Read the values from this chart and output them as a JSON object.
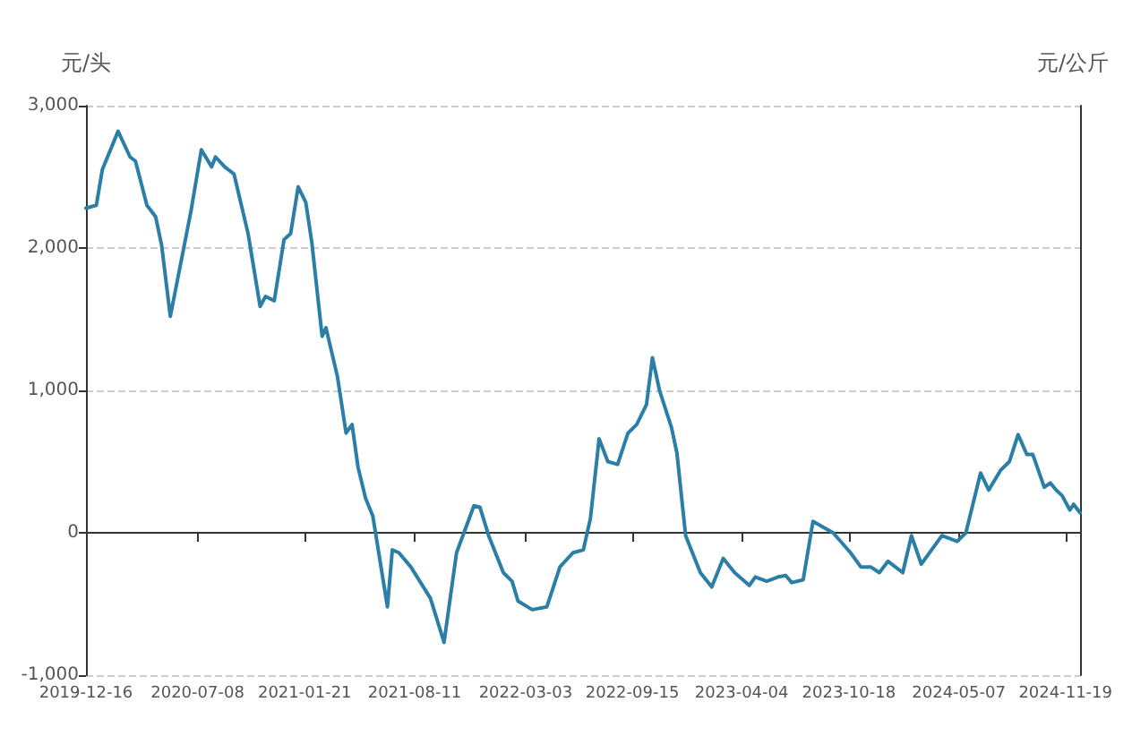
{
  "chart_data": {
    "type": "line",
    "ylabel": "元/头",
    "y2label": "元/公斤",
    "x": [
      "2019-12-16",
      "2020-01-04",
      "2020-01-15",
      "2020-02-13",
      "2020-03-06",
      "2020-03-16",
      "2020-04-06",
      "2020-04-22",
      "2020-05-03",
      "2020-05-19",
      "2020-06-26",
      "2020-07-15",
      "2020-08-03",
      "2020-08-10",
      "2020-08-27",
      "2020-09-13",
      "2020-10-09",
      "2020-10-31",
      "2020-11-10",
      "2020-11-26",
      "2020-12-14",
      "2020-12-26",
      "2021-01-09",
      "2021-01-23",
      "2021-02-03",
      "2021-02-22",
      "2021-03-01",
      "2021-03-22",
      "2021-04-07",
      "2021-04-18",
      "2021-04-29",
      "2021-05-13",
      "2021-05-26",
      "2021-06-22",
      "2021-07-01",
      "2021-07-13",
      "2021-08-04",
      "2021-09-09",
      "2021-10-04",
      "2021-10-27",
      "2021-11-28",
      "2021-12-09",
      "2021-12-25",
      "2022-01-21",
      "2022-02-06",
      "2022-02-17",
      "2022-03-15",
      "2022-04-11",
      "2022-05-05",
      "2022-05-29",
      "2022-06-17",
      "2022-06-30",
      "2022-07-16",
      "2022-08-01",
      "2022-08-19",
      "2022-09-07",
      "2022-09-23",
      "2022-10-11",
      "2022-10-22",
      "2022-11-04",
      "2022-11-26",
      "2022-12-06",
      "2022-12-22",
      "2023-01-18",
      "2023-02-08",
      "2023-03-01",
      "2023-03-22",
      "2023-04-18",
      "2023-04-29",
      "2023-05-20",
      "2023-06-10",
      "2023-06-24",
      "2023-07-05",
      "2023-07-26",
      "2023-08-13",
      "2023-09-19",
      "2023-10-21",
      "2023-11-09",
      "2023-11-27",
      "2023-12-13",
      "2023-12-29",
      "2024-01-25",
      "2024-02-10",
      "2024-02-28",
      "2024-04-06",
      "2024-05-04",
      "2024-05-20",
      "2024-06-16",
      "2024-07-01",
      "2024-07-23",
      "2024-08-08",
      "2024-08-24",
      "2024-09-09",
      "2024-09-20",
      "2024-10-11",
      "2024-10-22",
      "2024-11-02",
      "2024-11-13",
      "2024-11-27",
      "2024-12-04",
      "2024-12-16"
    ],
    "series": [
      {
        "color": "#2b7fa6",
        "values": [
          2280,
          2300,
          2550,
          2820,
          2640,
          2610,
          2300,
          2220,
          2020,
          1520,
          2260,
          2690,
          2570,
          2640,
          2570,
          2520,
          2100,
          1590,
          1660,
          1630,
          2060,
          2100,
          2430,
          2320,
          2040,
          1380,
          1440,
          1100,
          700,
          760,
          460,
          240,
          120,
          -520,
          -120,
          -140,
          -240,
          -460,
          -770,
          -140,
          190,
          180,
          -20,
          -280,
          -340,
          -480,
          -540,
          -520,
          -240,
          -140,
          -120,
          100,
          660,
          500,
          480,
          700,
          760,
          900,
          1230,
          1000,
          740,
          560,
          -20,
          -280,
          -380,
          -180,
          -280,
          -370,
          -310,
          -340,
          -310,
          -300,
          -350,
          -330,
          80,
          0,
          -140,
          -240,
          -240,
          -280,
          -200,
          -280,
          -20,
          -220,
          -20,
          -60,
          0,
          420,
          300,
          440,
          500,
          690,
          550,
          550,
          320,
          350,
          300,
          260,
          160,
          200,
          140
        ]
      }
    ],
    "xlim": [
      "2019-12-16",
      "2024-12-16"
    ],
    "xticks": [
      "2019-12-16",
      "2020-07-08",
      "2021-01-21",
      "2021-08-11",
      "2022-03-03",
      "2022-09-15",
      "2023-04-04",
      "2023-10-18",
      "2024-05-07",
      "2024-11-19"
    ],
    "ylim": [
      -1000,
      3000
    ],
    "yticks": [
      {
        "value": -1000,
        "label": "-1,000"
      },
      0,
      {
        "value": 1000,
        "label": "1,000"
      },
      {
        "value": 2000,
        "label": "2,000"
      },
      {
        "value": 3000,
        "label": "3,000"
      }
    ],
    "grid": "y",
    "marker": "none",
    "line_style": "solid"
  }
}
